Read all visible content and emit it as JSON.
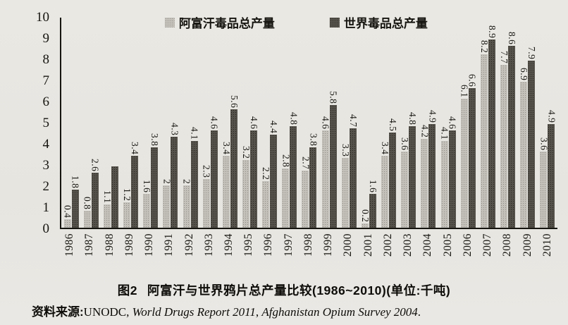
{
  "chart_data": {
    "type": "bar",
    "title": "阿富汗与世界鸦片总产量比较(1986~2010)",
    "unit": "千吨",
    "categories": [
      "1986",
      "1987",
      "1988",
      "1989",
      "1990",
      "1991",
      "1992",
      "1993",
      "1994",
      "1995",
      "1996",
      "1997",
      "1998",
      "1999",
      "2000",
      "2001",
      "2002",
      "2003",
      "2004",
      "2005",
      "2006",
      "2007",
      "2008",
      "2009",
      "2010"
    ],
    "series": [
      {
        "name": "阿富汗毒品总产量",
        "color": "#c3c1ba",
        "values": [
          0.4,
          0.8,
          1.1,
          1.2,
          1.6,
          2,
          2,
          2.3,
          3.4,
          3.2,
          2.2,
          2.8,
          2.7,
          4.6,
          3.3,
          0.2,
          3.4,
          3.6,
          4.2,
          4.1,
          6.1,
          8.2,
          7.7,
          6.9,
          3.6
        ],
        "labels": [
          "0.4",
          "0.8",
          "1.1",
          "1.2",
          "1.6",
          "2",
          "2",
          "2.3",
          "3.4",
          "3.2",
          "2.2",
          "2.8",
          "2.7",
          "4.6",
          "3.3",
          "0.2",
          "3.4",
          "3.6",
          "4.2",
          "4.1",
          "6.1",
          "8.2",
          "7.7",
          "6.9",
          "3.6"
        ]
      },
      {
        "name": "世界毒品总产量",
        "color": "#55524b",
        "values": [
          1.8,
          2.6,
          2.9,
          3.4,
          3.8,
          4.3,
          4.1,
          4.6,
          5.6,
          4.6,
          4.4,
          4.8,
          3.8,
          5.8,
          4.7,
          1.6,
          4.5,
          4.8,
          4.9,
          4.6,
          6.6,
          8.9,
          8.6,
          7.9,
          4.9
        ],
        "labels": [
          "1.8",
          "2.6",
          "",
          "3.4",
          "3.8",
          "4.3",
          "4.1",
          "4.6",
          "5.6",
          "4.6",
          "4.4",
          "4.8",
          "3.8",
          "5.8",
          "4.7",
          "1.6",
          "4.5",
          "4.8",
          "4.9",
          "4.6",
          "6.6",
          "8.9",
          "8.6",
          "7.9",
          "4.9"
        ]
      }
    ],
    "ylim": [
      0,
      10
    ],
    "yticks": [
      0,
      1,
      2,
      3,
      4,
      5,
      6,
      7,
      8,
      9,
      10
    ],
    "grid": false,
    "legend_position": "top",
    "value_labels": "vertical, above bars",
    "x_labels": "vertical, rotated 90° reading bottom-to-top"
  },
  "caption": {
    "fig_label": "图2",
    "text": "阿富汗与世界鸦片总产量比较(1986~2010)(单位:千吨)"
  },
  "source": {
    "prefix": "资料来源:",
    "org": "UNODC, ",
    "title1": "World Drugs Report 2011",
    "sep": ", ",
    "title2": "Afghanistan Opium Survey 2004",
    "end": "."
  }
}
